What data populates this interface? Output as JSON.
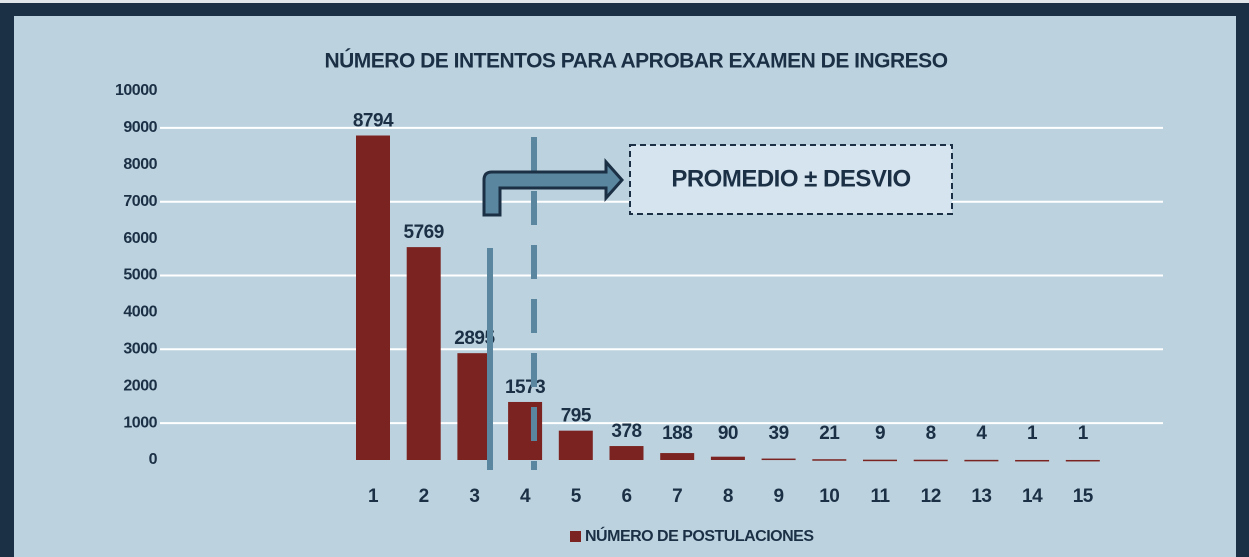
{
  "chart_data": {
    "type": "bar",
    "title": "NÚMERO DE INTENTOS PARA APROBAR EXAMEN DE INGRESO",
    "categories": [
      "1",
      "2",
      "3",
      "4",
      "5",
      "6",
      "7",
      "8",
      "9",
      "10",
      "11",
      "12",
      "13",
      "14",
      "15"
    ],
    "series": [
      {
        "name": "NÚMERO DE POSTULACIONES",
        "color": "#7b2320",
        "values": [
          8794,
          5769,
          2895,
          1573,
          795,
          378,
          188,
          90,
          39,
          21,
          9,
          8,
          4,
          1,
          1
        ]
      }
    ],
    "ylim": [
      0,
      10000
    ],
    "yticks": [
      0,
      1000,
      2000,
      3000,
      4000,
      5000,
      6000,
      7000,
      8000,
      9000,
      10000
    ],
    "grid": true,
    "legend": "bottom",
    "annotations": [
      "PROMEDIO ± DESVIO"
    ]
  }
}
